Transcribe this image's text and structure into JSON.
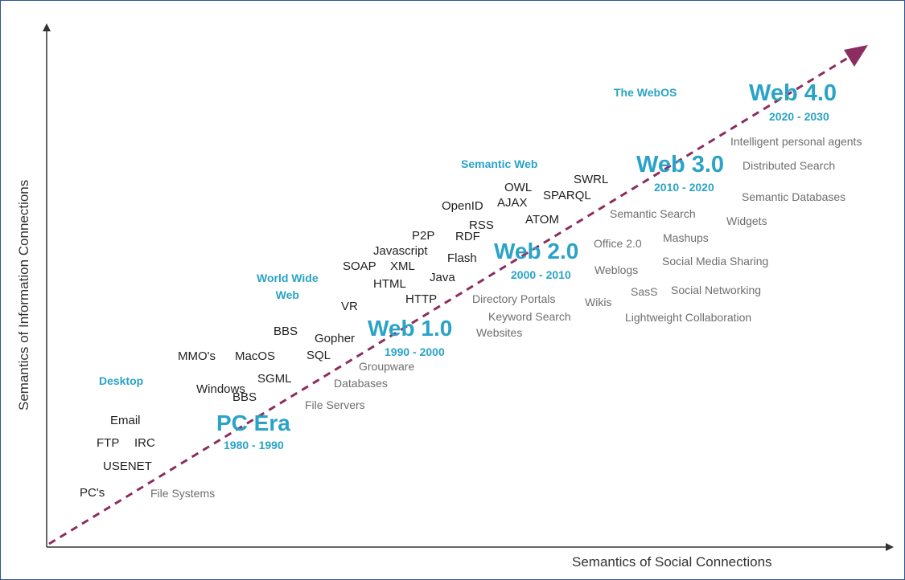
{
  "axes": {
    "y_label": "Semantics of Information Connections",
    "x_label": "Semantics of Social Connections"
  },
  "eras": [
    {
      "key": "pc",
      "title": "PC Era",
      "years": "1980 - 1990",
      "heading": "Desktop"
    },
    {
      "key": "web1",
      "title": "Web 1.0",
      "years": "1990 - 2000",
      "heading": "World Wide\nWeb"
    },
    {
      "key": "web2",
      "title": "Web 2.0",
      "years": "2000 - 2010",
      "heading": ""
    },
    {
      "key": "web3",
      "title": "Web 3.0",
      "years": "2010 - 2020",
      "heading": "Semantic Web"
    },
    {
      "key": "web4",
      "title": "Web 4.0",
      "years": "2020 - 2030",
      "heading": "The WebOS"
    }
  ],
  "technologies": {
    "pc_era": [
      "PC's",
      "USENET",
      "FTP",
      "IRC",
      "Email",
      "Windows",
      "BBS",
      "SGML"
    ],
    "web1": [
      "MMO's",
      "MacOS",
      "BBS",
      "Gopher",
      "SQL",
      "VR",
      "HTML",
      "HTTP",
      "SOAP",
      "XML",
      "Javascript",
      "Java"
    ],
    "web2": [
      "P2P",
      "RDF",
      "Flash",
      "RSS",
      "OpenID",
      "AJAX",
      "OWL",
      "ATOM",
      "SPARQL",
      "SWRL"
    ]
  },
  "applications": {
    "pc_era": [
      "File Systems",
      "File Servers",
      "Databases",
      "Groupware"
    ],
    "web1": [
      "Websites",
      "Keyword Search",
      "Directory Portals",
      "Wikis"
    ],
    "web2": [
      "Office 2.0",
      "Weblogs",
      "SasS",
      "Social Networking",
      "Lightweight Collaboration",
      "Social Media Sharing",
      "Mashups"
    ],
    "web3": [
      "Semantic Search",
      "Widgets",
      "Semantic Databases",
      "Distributed Search",
      "Intelligent personal agents"
    ]
  }
}
